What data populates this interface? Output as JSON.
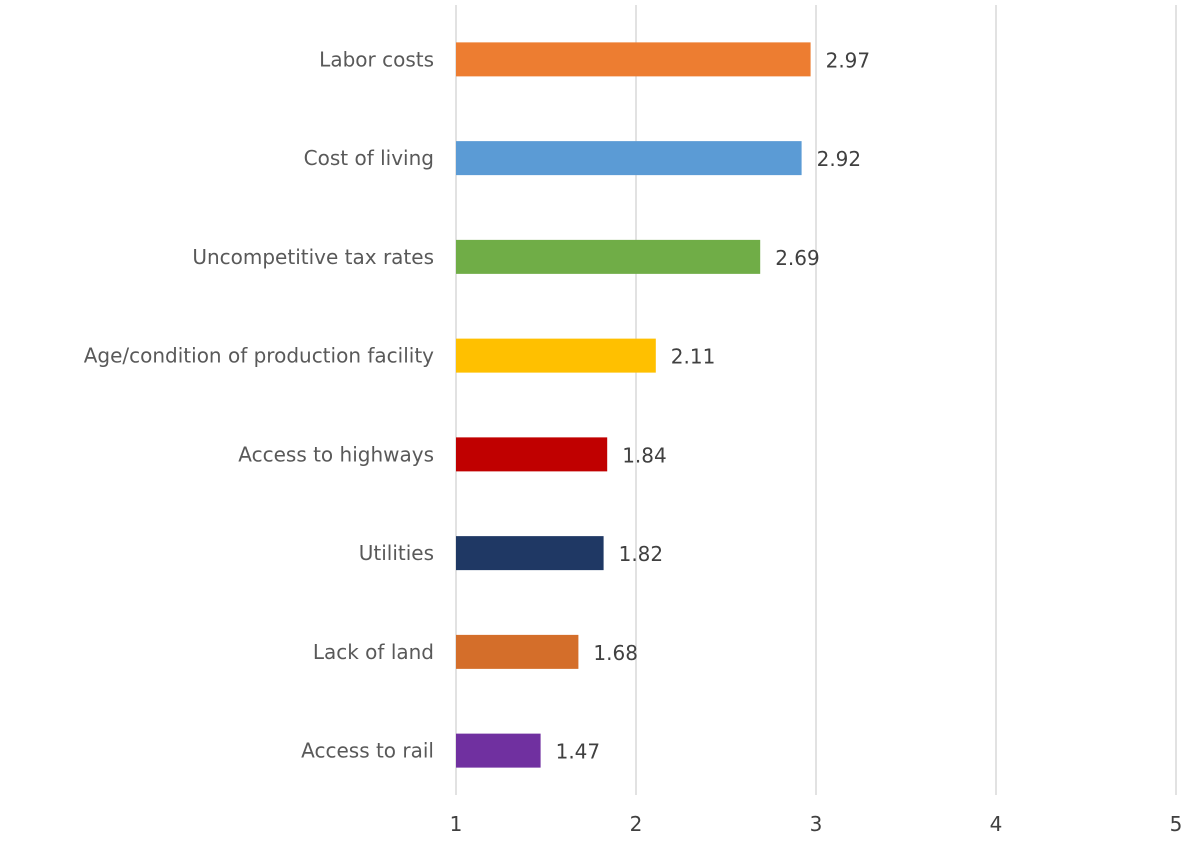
{
  "chart_data": {
    "type": "bar",
    "orientation": "horizontal",
    "title": "",
    "xlabel": "",
    "ylabel": "",
    "categories": [
      "Labor costs",
      "Cost of living",
      "Uncompetitive tax rates",
      "Age/condition of production facility",
      "Access to highways",
      "Utilities",
      "Lack of land",
      "Access to rail"
    ],
    "values": [
      2.97,
      2.92,
      2.69,
      2.11,
      1.84,
      1.82,
      1.68,
      1.47
    ],
    "value_labels": [
      "2.97",
      "2.92",
      "2.69",
      "2.11",
      "1.84",
      "1.82",
      "1.68",
      "1.47"
    ],
    "colors": [
      "#ED7D31",
      "#5B9BD5",
      "#70AD47",
      "#FFC000",
      "#C00000",
      "#1F3864",
      "#D46E2A",
      "#7030A0"
    ],
    "xlim": [
      1,
      5
    ],
    "xticks": [
      1,
      2,
      3,
      4,
      5
    ],
    "xtick_labels": [
      "1",
      "2",
      "3",
      "4",
      "5"
    ],
    "grid": "vertical",
    "legend": "none"
  }
}
